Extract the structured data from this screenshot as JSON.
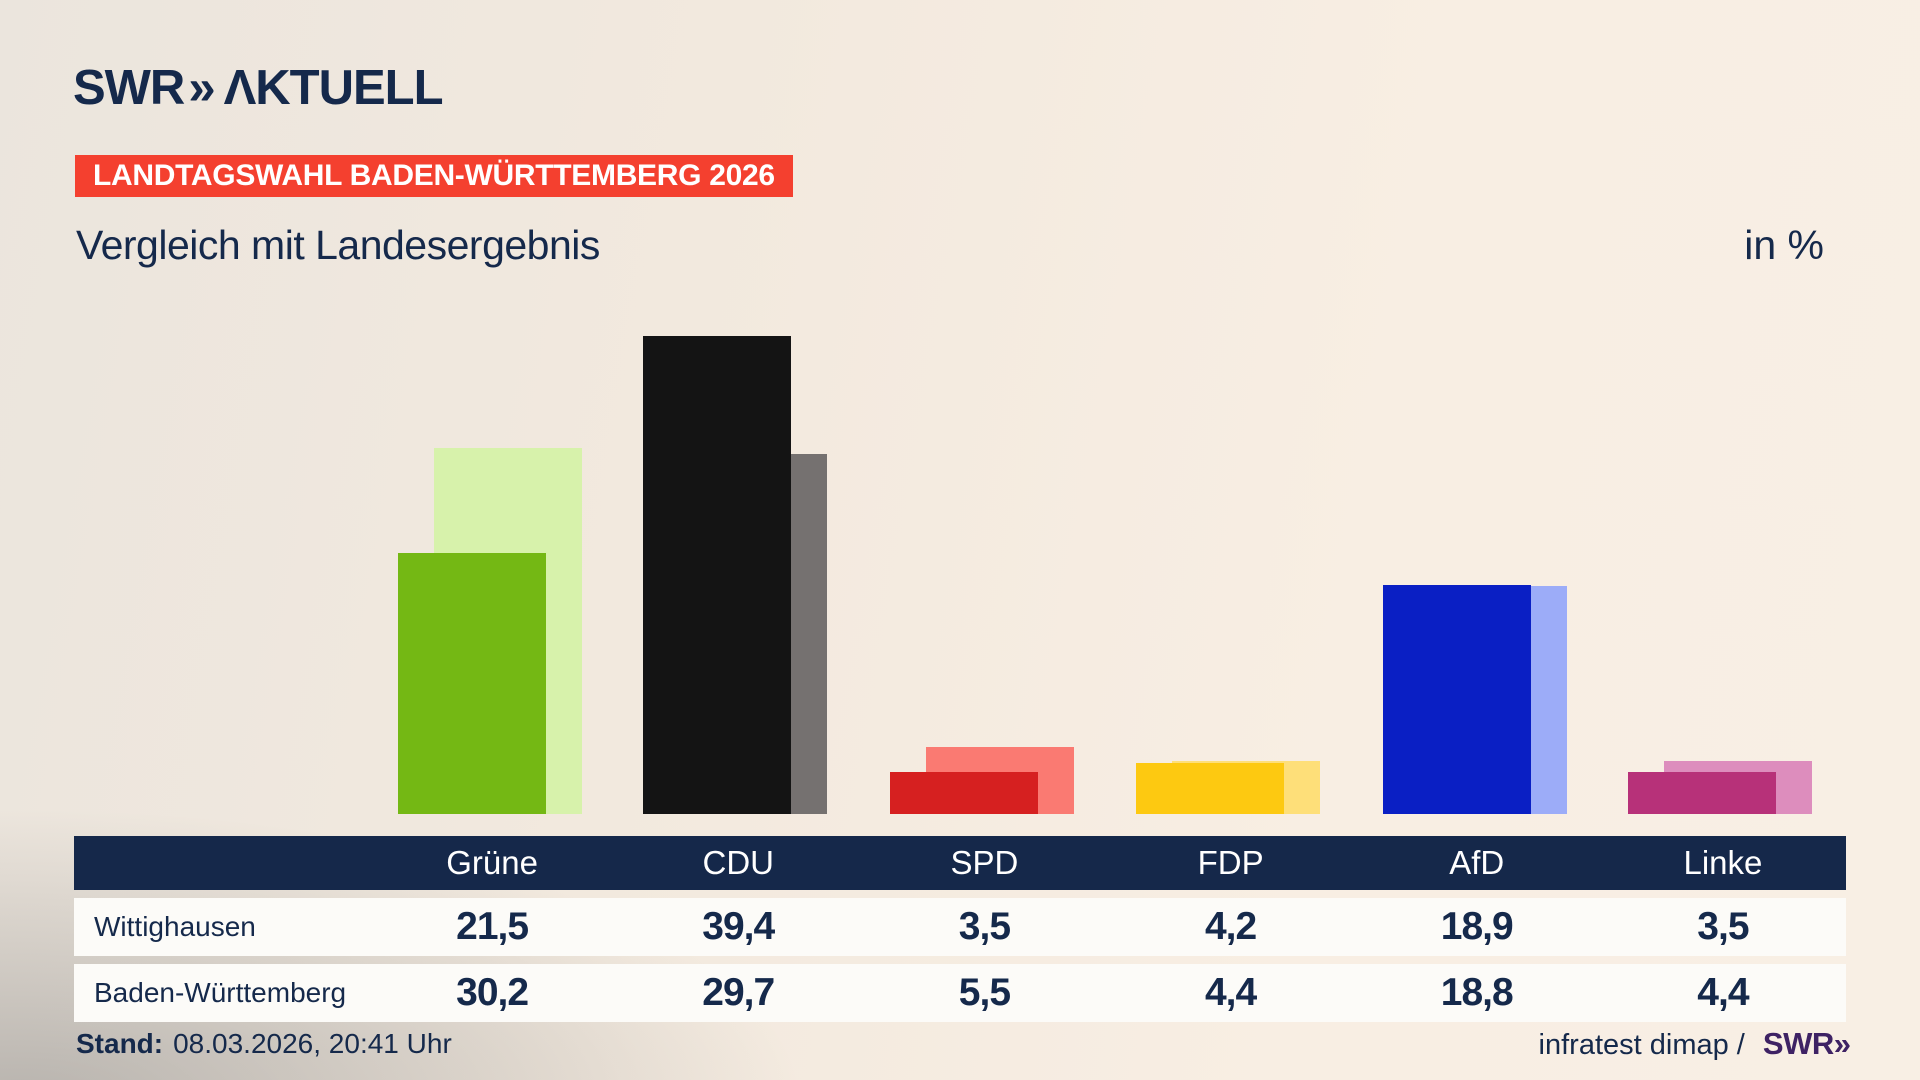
{
  "brand": {
    "swr": "SWR",
    "chevrons": "»",
    "aktuell": "ΛKTUELL"
  },
  "banner": {
    "text": "LANDTAGSWAHL BADEN-WÜRTTEMBERG 2026",
    "bg": "#f4402f"
  },
  "title": {
    "text": "Vergleich mit Landesergebnis",
    "unit": "in %"
  },
  "chart_data": {
    "type": "bar",
    "title": "Vergleich mit Landesergebnis",
    "ylabel": "in %",
    "ylim": [
      0,
      40
    ],
    "grid": false,
    "legend_position": "table below chart",
    "categories": [
      "Grüne",
      "CDU",
      "SPD",
      "FDP",
      "AfD",
      "Linke"
    ],
    "series": [
      {
        "name": "Wittighausen",
        "values": [
          21.5,
          39.4,
          3.5,
          4.2,
          18.9,
          3.5
        ],
        "colors": [
          "#74b814",
          "#141414",
          "#d62020",
          "#fdc911",
          "#0a1fc4",
          "#b73179"
        ]
      },
      {
        "name": "Baden-Württemberg",
        "values": [
          30.2,
          29.7,
          5.5,
          4.4,
          18.8,
          4.4
        ],
        "colors": [
          "#d7f2ab",
          "#757170",
          "#fa7a72",
          "#fedf79",
          "#9cacf8",
          "#dd8dbd"
        ]
      }
    ]
  },
  "table": {
    "header": [
      "Grüne",
      "CDU",
      "SPD",
      "FDP",
      "AfD",
      "Linke"
    ],
    "rows": [
      {
        "label": "Wittighausen",
        "values": [
          "21,5",
          "39,4",
          "3,5",
          "4,2",
          "18,9",
          "3,5"
        ]
      },
      {
        "label": "Baden-Württemberg",
        "values": [
          "30,2",
          "29,7",
          "5,5",
          "4,4",
          "18,8",
          "4,4"
        ]
      }
    ]
  },
  "footer": {
    "stand_label": "Stand:",
    "stand_value": "08.03.2026, 20:41 Uhr",
    "source_text": "infratest dimap /",
    "source_logo_swr": "SWR",
    "source_logo_chevrons": "»"
  }
}
